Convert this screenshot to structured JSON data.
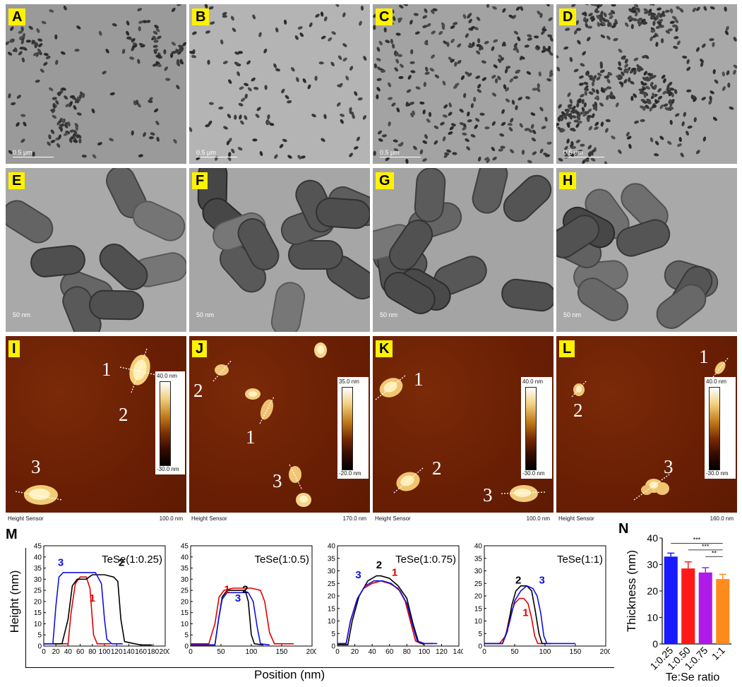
{
  "tem_low": [
    {
      "label": "A",
      "scale": "0.5 μm"
    },
    {
      "label": "B",
      "scale": "0.5 μm"
    },
    {
      "label": "C",
      "scale": "0.5 μm"
    },
    {
      "label": "D",
      "scale": "0.5 μm"
    }
  ],
  "tem_high": [
    {
      "label": "E",
      "scale": "50 nm"
    },
    {
      "label": "F",
      "scale": "50 nm"
    },
    {
      "label": "G",
      "scale": "50 nm"
    },
    {
      "label": "H",
      "scale": "50 nm"
    }
  ],
  "afm": [
    {
      "label": "I",
      "sensor": "Height Sensor",
      "scan": "100.0 nm",
      "cmax": "40.0 nm",
      "cmin": "-30.0 nm",
      "n1": "1",
      "n2": "2",
      "n3": "3"
    },
    {
      "label": "J",
      "sensor": "Height Sensor",
      "scan": "170.0 nm",
      "cmax": "35.0 nm",
      "cmin": "-20.0 nm",
      "n1": "1",
      "n2": "2",
      "n3": "3"
    },
    {
      "label": "K",
      "sensor": "Height Sensor",
      "scan": "100.0 nm",
      "cmax": "40.0 nm",
      "cmin": "-30.0 nm",
      "n1": "1",
      "n2": "2",
      "n3": "3"
    },
    {
      "label": "L",
      "sensor": "Height Sensor",
      "scan": "160.0 nm",
      "cmax": "40.0 nm",
      "cmin": "-30.0 nm",
      "n1": "1",
      "n2": "2",
      "n3": "3"
    }
  ],
  "profiles": {
    "label": "M",
    "xlabel": "Position (nm)",
    "ylabel": "Height (nm)",
    "colors": {
      "1": "#e00000",
      "2": "#000000",
      "3": "#1010e0"
    }
  },
  "bars": {
    "label": "N",
    "ylabel": "Thickness (nm)",
    "xlabel": "Te:Se ratio",
    "sig": [
      "***",
      "***",
      "**"
    ]
  },
  "chart_data": [
    {
      "type": "line",
      "title": "TeSe(1:0.25)",
      "xlabel": "Position (nm)",
      "ylabel": "Height (nm)",
      "xlim": [
        0,
        200
      ],
      "ylim": [
        0,
        45
      ],
      "xticks": [
        "0",
        "20",
        "40",
        "60",
        "80",
        "100",
        "120",
        "140",
        "160",
        "180",
        "200"
      ],
      "yticks": [
        "0",
        "5",
        "10",
        "15",
        "20",
        "25",
        "30",
        "35",
        "40",
        "45"
      ],
      "series": [
        {
          "name": "1",
          "points": [
            [
              0,
              1
            ],
            [
              40,
              1
            ],
            [
              45,
              15
            ],
            [
              52,
              28
            ],
            [
              60,
              31
            ],
            [
              70,
              31
            ],
            [
              76,
              26
            ],
            [
              82,
              5
            ],
            [
              88,
              1
            ],
            [
              110,
              1
            ]
          ]
        },
        {
          "name": "2",
          "points": [
            [
              0,
              1
            ],
            [
              30,
              1
            ],
            [
              40,
              12
            ],
            [
              47,
              27
            ],
            [
              55,
              30
            ],
            [
              70,
              30
            ],
            [
              80,
              32
            ],
            [
              100,
              32
            ],
            [
              115,
              31
            ],
            [
              122,
              29
            ],
            [
              127,
              12
            ],
            [
              133,
              2
            ],
            [
              150,
              1
            ],
            [
              160,
              0.5
            ],
            [
              178,
              0.5
            ]
          ]
        },
        {
          "name": "3",
          "points": [
            [
              0,
              1
            ],
            [
              15,
              1
            ],
            [
              20,
              18
            ],
            [
              25,
              31
            ],
            [
              32,
              33
            ],
            [
              45,
              33
            ],
            [
              60,
              33
            ],
            [
              75,
              33
            ],
            [
              85,
              33
            ],
            [
              95,
              28
            ],
            [
              100,
              12
            ],
            [
              104,
              3
            ],
            [
              112,
              1
            ],
            [
              130,
              1
            ]
          ]
        }
      ],
      "annotations": [
        "1",
        "2",
        "3"
      ]
    },
    {
      "type": "line",
      "title": "TeSe(1:0.5)",
      "xlabel": "Position (nm)",
      "ylabel": "Height (nm)",
      "xlim": [
        0,
        200
      ],
      "ylim": [
        0,
        45
      ],
      "xticks": [
        "0",
        "50",
        "100",
        "150",
        "200"
      ],
      "yticks": [
        "0",
        "5",
        "10",
        "15",
        "20",
        "25",
        "30",
        "35",
        "40",
        "45"
      ],
      "series": [
        {
          "name": "1",
          "points": [
            [
              0,
              1
            ],
            [
              30,
              1
            ],
            [
              40,
              10
            ],
            [
              47,
              22
            ],
            [
              55,
              25
            ],
            [
              70,
              26
            ],
            [
              100,
              26
            ],
            [
              115,
              25
            ],
            [
              122,
              20
            ],
            [
              130,
              6
            ],
            [
              138,
              1
            ],
            [
              170,
              1
            ]
          ]
        },
        {
          "name": "2",
          "points": [
            [
              0,
              0.5
            ],
            [
              40,
              0.5
            ],
            [
              46,
              12
            ],
            [
              52,
              22
            ],
            [
              60,
              25
            ],
            [
              90,
              25
            ],
            [
              95,
              20
            ],
            [
              100,
              5
            ],
            [
              105,
              1
            ],
            [
              120,
              0.5
            ]
          ]
        },
        {
          "name": "3",
          "points": [
            [
              0,
              0.5
            ],
            [
              40,
              0.5
            ],
            [
              46,
              12
            ],
            [
              52,
              21
            ],
            [
              60,
              24
            ],
            [
              95,
              24
            ],
            [
              103,
              20
            ],
            [
              110,
              8
            ],
            [
              115,
              1
            ],
            [
              130,
              0.5
            ]
          ]
        }
      ],
      "annotations": [
        "1",
        "2",
        "3"
      ]
    },
    {
      "type": "line",
      "title": "TeSe(1:0.75)",
      "xlabel": "Position (nm)",
      "ylabel": "Height (nm)",
      "xlim": [
        0,
        140
      ],
      "ylim": [
        0,
        40
      ],
      "xticks": [
        "0",
        "20",
        "40",
        "60",
        "80",
        "100",
        "120",
        "140"
      ],
      "yticks": [
        "0",
        "5",
        "10",
        "15",
        "20",
        "25",
        "30",
        "35",
        "40"
      ],
      "series": [
        {
          "name": "1",
          "points": [
            [
              0,
              1
            ],
            [
              10,
              1
            ],
            [
              15,
              10
            ],
            [
              22,
              18
            ],
            [
              30,
              23
            ],
            [
              40,
              25
            ],
            [
              50,
              26
            ],
            [
              60,
              25
            ],
            [
              70,
              23
            ],
            [
              78,
              18
            ],
            [
              84,
              10
            ],
            [
              90,
              2
            ],
            [
              96,
              1
            ],
            [
              110,
              1
            ]
          ]
        },
        {
          "name": "2",
          "points": [
            [
              0,
              0.5
            ],
            [
              12,
              0.5
            ],
            [
              17,
              10
            ],
            [
              25,
              20
            ],
            [
              35,
              26
            ],
            [
              45,
              28
            ],
            [
              50,
              28
            ],
            [
              60,
              27
            ],
            [
              70,
              24
            ],
            [
              80,
              19
            ],
            [
              87,
              9
            ],
            [
              93,
              2
            ],
            [
              100,
              0.5
            ]
          ]
        },
        {
          "name": "3",
          "points": [
            [
              0,
              1
            ],
            [
              10,
              1
            ],
            [
              15,
              10
            ],
            [
              23,
              19
            ],
            [
              32,
              24
            ],
            [
              42,
              26
            ],
            [
              52,
              26
            ],
            [
              62,
              25
            ],
            [
              72,
              22
            ],
            [
              80,
              17
            ],
            [
              86,
              9
            ],
            [
              92,
              2
            ],
            [
              100,
              1
            ],
            [
              115,
              1
            ]
          ]
        }
      ],
      "annotations": [
        "1",
        "2",
        "3"
      ]
    },
    {
      "type": "line",
      "title": "TeSe(1:1)",
      "xlabel": "Position (nm)",
      "ylabel": "Height (nm)",
      "xlim": [
        0,
        200
      ],
      "ylim": [
        0,
        40
      ],
      "xticks": [
        "0",
        "50",
        "100",
        "150",
        "200"
      ],
      "yticks": [
        "0",
        "5",
        "10",
        "15",
        "20",
        "25",
        "30",
        "35",
        "40"
      ],
      "series": [
        {
          "name": "1",
          "points": [
            [
              0,
              1
            ],
            [
              25,
              1
            ],
            [
              35,
              4
            ],
            [
              42,
              12
            ],
            [
              50,
              17
            ],
            [
              58,
              19
            ],
            [
              65,
              19
            ],
            [
              72,
              17
            ],
            [
              78,
              11
            ],
            [
              83,
              4
            ],
            [
              88,
              1
            ],
            [
              100,
              1
            ]
          ]
        },
        {
          "name": "2",
          "points": [
            [
              0,
              1
            ],
            [
              30,
              1
            ],
            [
              38,
              6
            ],
            [
              45,
              16
            ],
            [
              52,
              22
            ],
            [
              60,
              24
            ],
            [
              70,
              24
            ],
            [
              78,
              22
            ],
            [
              84,
              14
            ],
            [
              90,
              5
            ],
            [
              95,
              1
            ],
            [
              110,
              1
            ]
          ]
        },
        {
          "name": "3",
          "points": [
            [
              0,
              1
            ],
            [
              30,
              1
            ],
            [
              40,
              8
            ],
            [
              50,
              18
            ],
            [
              60,
              22
            ],
            [
              70,
              24
            ],
            [
              80,
              23
            ],
            [
              87,
              20
            ],
            [
              93,
              13
            ],
            [
              98,
              4
            ],
            [
              103,
              1
            ],
            [
              150,
              1
            ]
          ]
        }
      ],
      "annotations": [
        "1",
        "2",
        "3"
      ]
    },
    {
      "type": "bar",
      "xlabel": "Te:Se ratio",
      "ylabel": "Thickness (nm)",
      "categories": [
        "1:0.25",
        "1:0.50",
        "1:0.75",
        "1:1"
      ],
      "values": [
        33,
        28.5,
        27,
        24.5
      ],
      "errors": [
        1.3,
        2.5,
        1.8,
        1.8
      ],
      "colors": [
        "#1a1aff",
        "#ff1a1a",
        "#b01ae8",
        "#ff8c1a"
      ],
      "ylim": [
        0,
        40
      ],
      "yticks": [
        "0",
        "10",
        "20",
        "30",
        "40"
      ],
      "significance": [
        "***",
        "***",
        "**"
      ]
    }
  ]
}
